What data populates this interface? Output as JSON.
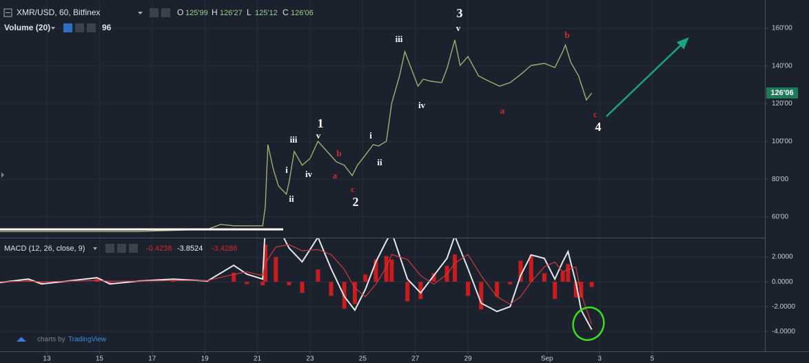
{
  "toolbar": {
    "symbol": "XMR/USD, 60, Bitfinex",
    "ohlc": [
      {
        "key": "O",
        "value": "125'99"
      },
      {
        "key": "H",
        "value": "126'27"
      },
      {
        "key": "L",
        "value": "125'12"
      },
      {
        "key": "C",
        "value": "126'06"
      }
    ],
    "volume": {
      "label": "Volume (20)",
      "value": "96"
    },
    "macd": {
      "label": "MACD (12, 26, close, 9)",
      "values": [
        "-0.4238",
        "-3.8524",
        "-3.4286"
      ]
    },
    "branding": {
      "prefix": "charts by",
      "name": "TradingView"
    }
  },
  "annotations": [
    "3",
    "v",
    "iii",
    "b",
    "1",
    "v",
    "iii",
    "i",
    "iv",
    "ii",
    "a",
    "b",
    "c",
    "2",
    "i",
    "ii",
    "iv",
    "a",
    "c",
    "4"
  ],
  "chart_data": [
    {
      "type": "line",
      "last_price_label": "126'06",
      "x": [
        -1.8,
        0.8,
        3.5,
        6.1,
        6.6,
        7.1,
        8.2,
        8.3,
        8.4,
        8.6,
        8.8,
        9.1,
        9.2,
        9.4,
        9.7,
        10.0,
        10.3,
        10.7,
        11.0,
        11.3,
        11.6,
        11.8,
        12.1,
        12.4,
        12.6,
        12.9,
        13.1,
        13.4,
        13.6,
        13.8,
        14.1,
        14.3,
        14.6,
        15.0,
        15.2,
        15.5,
        15.7,
        16.0,
        16.4,
        16.8,
        17.2,
        17.6,
        18.0,
        18.4,
        18.9,
        19.3,
        19.6,
        19.7,
        19.9,
        20.2,
        20.5,
        20.7
      ],
      "series": [
        {
          "name": "XMR/USD",
          "color": "#a3b06e",
          "values": [
            52.3,
            52.3,
            52.3,
            53.4,
            56.0,
            55.3,
            55.3,
            65.5,
            98.3,
            85.5,
            76.4,
            72.0,
            78.2,
            94.7,
            87.4,
            91.0,
            100.1,
            93.9,
            89.2,
            87.4,
            81.9,
            87.4,
            92.8,
            98.3,
            97.6,
            100.1,
            120.2,
            134.8,
            147.6,
            140.3,
            129.3,
            133.0,
            131.9,
            131.2,
            138.5,
            153.8,
            140.3,
            145.0,
            134.8,
            131.9,
            129.3,
            131.2,
            135.5,
            140.3,
            141.4,
            139.2,
            147.6,
            151.2,
            142.1,
            134.8,
            122.0,
            125.7
          ]
        }
      ],
      "xlim": [
        -1.78,
        27.28
      ],
      "ylim": [
        49,
        175
      ],
      "yticks": [
        {
          "value": 60,
          "label": "60'00"
        },
        {
          "value": 80,
          "label": "80'00"
        },
        {
          "value": 100,
          "label": "100'00"
        },
        {
          "value": 120,
          "label": "120'00"
        },
        {
          "value": 140,
          "label": "140'00"
        },
        {
          "value": 160,
          "label": "160'00"
        }
      ],
      "grid": true
    },
    {
      "type": "macd",
      "x": [
        -1.8,
        -0.7,
        -0.2,
        0.8,
        1.9,
        2.4,
        3.5,
        4.8,
        6.1,
        7.1,
        7.6,
        8.2,
        8.3,
        8.7,
        9.2,
        9.7,
        10.3,
        10.8,
        11.3,
        11.7,
        12.1,
        12.5,
        12.9,
        13.1,
        13.7,
        14.2,
        14.7,
        15.2,
        15.5,
        16.0,
        16.5,
        17.1,
        17.6,
        18.0,
        18.4,
        18.9,
        19.3,
        19.6,
        19.8,
        20.1,
        20.3,
        20.7
      ],
      "series": [
        {
          "name": "Histogram",
          "color": "#c91c1f",
          "values": [
            -0.06,
            0.17,
            -0.17,
            0.01,
            0.23,
            -0.22,
            0.01,
            0.12,
            -0.04,
            0.73,
            -0.19,
            -0.28,
            3.0,
            2.0,
            -0.28,
            -0.89,
            1.0,
            -1.14,
            -2.17,
            -1.78,
            0.59,
            1.81,
            2.08,
            1.8,
            -1.58,
            -1.39,
            0.7,
            1.29,
            2.2,
            -1.14,
            -2.22,
            -1.19,
            -0.2,
            1.7,
            2.17,
            0.69,
            -1.38,
            0.81,
            1.44,
            -1.26,
            -1.28,
            -0.42
          ]
        },
        {
          "name": "MACD",
          "color": "#e6e8ec",
          "values": [
            -0.06,
            0.22,
            -0.17,
            0.06,
            0.33,
            -0.17,
            0.06,
            0.22,
            0.06,
            1.33,
            0.61,
            0.22,
            4.5,
            4.8,
            2.72,
            1.61,
            3.6,
            1.06,
            -1.17,
            -2.28,
            -0.61,
            1.61,
            3.28,
            4.0,
            0.22,
            -0.89,
            0.5,
            1.89,
            3.7,
            1.06,
            -1.72,
            -2.39,
            -2.0,
            0.5,
            2.17,
            1.89,
            0.22,
            1.61,
            2.44,
            -0.06,
            -2.28,
            -3.85
          ]
        },
        {
          "name": "Signal",
          "color": "#d23a3a",
          "values": [
            0,
            0.05,
            0,
            0.05,
            0.1,
            0.05,
            0.05,
            0.1,
            0.1,
            0.6,
            0.8,
            0.5,
            1.5,
            2.8,
            3.0,
            2.5,
            2.6,
            2.2,
            1.0,
            -0.5,
            -1.2,
            -0.2,
            1.2,
            2.2,
            1.8,
            0.5,
            -0.2,
            0.6,
            1.5,
            2.2,
            0.5,
            -1.2,
            -1.8,
            -1.2,
            0.0,
            1.2,
            1.6,
            0.8,
            1.0,
            1.2,
            -1.0,
            -3.43
          ]
        }
      ],
      "xlim": [
        -1.78,
        27.28
      ],
      "ylim": [
        -5.6,
        3.56
      ],
      "yticks": [
        {
          "value": 2,
          "label": "2.0000"
        },
        {
          "value": 0,
          "label": "0.0000"
        },
        {
          "value": -2,
          "label": "-2.0000"
        },
        {
          "value": -4,
          "label": "-4.0000"
        }
      ],
      "xticks": [
        {
          "value": 0,
          "label": "13"
        },
        {
          "value": 2,
          "label": "15"
        },
        {
          "value": 4,
          "label": "17"
        },
        {
          "value": 6,
          "label": "19"
        },
        {
          "value": 8,
          "label": "21"
        },
        {
          "value": 10,
          "label": "23"
        },
        {
          "value": 12,
          "label": "25"
        },
        {
          "value": 14,
          "label": "27"
        },
        {
          "value": 16,
          "label": "29"
        },
        {
          "value": 19,
          "label": "Sep"
        },
        {
          "value": 21,
          "label": "3"
        },
        {
          "value": 23,
          "label": "5"
        }
      ],
      "grid": true
    }
  ]
}
